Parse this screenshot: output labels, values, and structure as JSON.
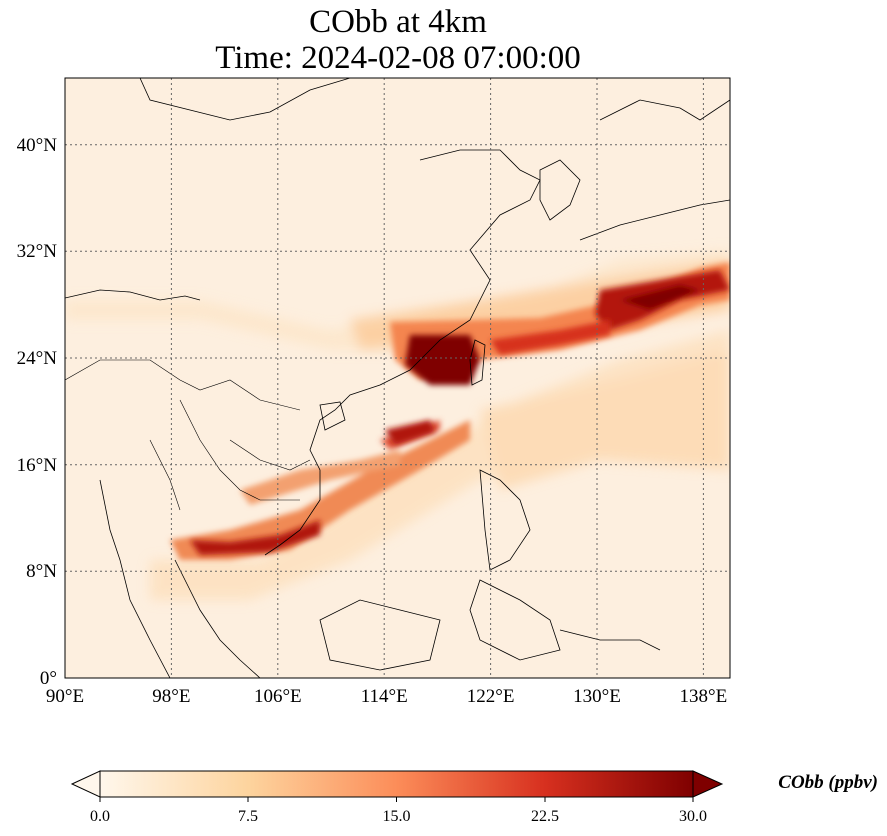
{
  "title": {
    "line1": "CObb at 4km",
    "line2": "Time: 2024-02-08 07:00:00"
  },
  "map": {
    "lon_range": [
      90,
      140
    ],
    "lat_range": [
      0,
      45
    ],
    "lat_ticks": [
      "0°",
      "8°N",
      "16°N",
      "24°N",
      "32°N",
      "40°N"
    ],
    "lat_tick_values": [
      0,
      8,
      16,
      24,
      32,
      40
    ],
    "lon_ticks": [
      "90°E",
      "98°E",
      "106°E",
      "114°E",
      "122°E",
      "130°E",
      "138°E"
    ],
    "lon_tick_values": [
      90,
      98,
      106,
      114,
      122,
      130,
      138
    ],
    "gridlines": "dotted",
    "features": [
      "coastlines",
      "country-borders"
    ]
  },
  "colorbar": {
    "label": "CObb (ppbv)",
    "ticks": [
      "0.0",
      "7.5",
      "15.0",
      "22.5",
      "30.0"
    ],
    "min": 0,
    "max": 30,
    "extend": "both",
    "colormap": "OrRd",
    "colors": [
      "#fff7ec",
      "#fdd49e",
      "#fc8d59",
      "#d7301f",
      "#7f0000"
    ]
  }
}
